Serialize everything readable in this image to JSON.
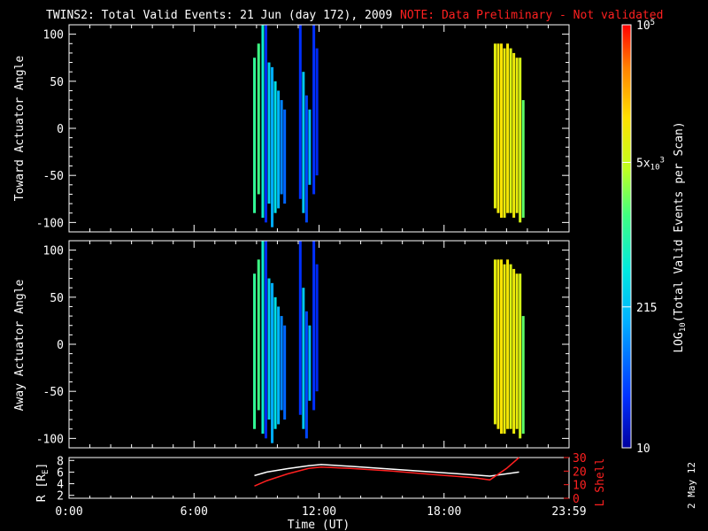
{
  "header": {
    "title": "TWINS2: Total Valid Events: 21 Jun (day 172), 2009",
    "note": "NOTE: Data Preliminary - Not validated"
  },
  "date_stamp": "2 May 12",
  "colors": {
    "background": "#000000",
    "note": "#ff2020",
    "axis": "#ffffff",
    "l_shell_line": "#ff2020",
    "r_line": "#ffffff"
  },
  "colorbar": {
    "label": "LOG10(Total Valid Events per Scan)",
    "label_main": "LOG",
    "label_sub": "10",
    "label_rest": "(Total Valid Events per Scan)",
    "scale": "log",
    "range": [
      10,
      100000
    ],
    "ticks": [
      {
        "value": 10,
        "base": "10",
        "sup": "",
        "sub": ""
      },
      {
        "value": 215,
        "base": "215",
        "sup": "",
        "sub": ""
      },
      {
        "value": 5000,
        "base": "5x",
        "sub": "10",
        "sup": "3"
      },
      {
        "value": 100000,
        "base": "10",
        "sup": "5",
        "sub": ""
      }
    ]
  },
  "chart_data": [
    {
      "type": "heatmap",
      "panel": "top",
      "ylabel": "Toward Actuator Angle",
      "ylim": [
        -110,
        110
      ],
      "yticks": [
        "100",
        "50",
        "0",
        "-50",
        "-100"
      ],
      "ytick_values": [
        100,
        50,
        0,
        -50,
        -100
      ],
      "xlim_hours": [
        0,
        24
      ],
      "columns": [
        {
          "t": 8.9,
          "y0": -90,
          "y1": 75,
          "v": 1200
        },
        {
          "t": 9.1,
          "y0": -70,
          "y1": 90,
          "v": 1500
        },
        {
          "t": 9.3,
          "y0": -95,
          "y1": 110,
          "v": 600
        },
        {
          "t": 9.45,
          "y0": -100,
          "y1": 110,
          "v": 25
        },
        {
          "t": 9.6,
          "y0": -80,
          "y1": 70,
          "v": 300
        },
        {
          "t": 9.75,
          "y0": -105,
          "y1": 65,
          "v": 150
        },
        {
          "t": 9.9,
          "y0": -90,
          "y1": 50,
          "v": 400
        },
        {
          "t": 10.05,
          "y0": -85,
          "y1": 40,
          "v": 180
        },
        {
          "t": 10.2,
          "y0": -70,
          "y1": 30,
          "v": 90
        },
        {
          "t": 10.35,
          "y0": -80,
          "y1": 20,
          "v": 60
        },
        {
          "t": 11.1,
          "y0": -75,
          "y1": 110,
          "v": 30
        },
        {
          "t": 11.25,
          "y0": -90,
          "y1": 60,
          "v": 250
        },
        {
          "t": 11.4,
          "y0": -100,
          "y1": 35,
          "v": 40
        },
        {
          "t": 11.55,
          "y0": -60,
          "y1": 20,
          "v": 220
        },
        {
          "t": 11.75,
          "y0": -70,
          "y1": 110,
          "v": 30
        },
        {
          "t": 11.9,
          "y0": -50,
          "y1": 85,
          "v": 25
        },
        {
          "t": 20.45,
          "y0": -85,
          "y1": 90,
          "v": 8000
        },
        {
          "t": 20.6,
          "y0": -90,
          "y1": 90,
          "v": 10000
        },
        {
          "t": 20.75,
          "y0": -95,
          "y1": 90,
          "v": 12000
        },
        {
          "t": 20.9,
          "y0": -95,
          "y1": 85,
          "v": 9000
        },
        {
          "t": 21.05,
          "y0": -90,
          "y1": 90,
          "v": 11000
        },
        {
          "t": 21.2,
          "y0": -90,
          "y1": 85,
          "v": 7000
        },
        {
          "t": 21.35,
          "y0": -95,
          "y1": 80,
          "v": 9500
        },
        {
          "t": 21.5,
          "y0": -90,
          "y1": 75,
          "v": 8500
        },
        {
          "t": 21.65,
          "y0": -100,
          "y1": 75,
          "v": 6000
        },
        {
          "t": 21.8,
          "y0": -95,
          "y1": 30,
          "v": 2000
        }
      ]
    },
    {
      "type": "heatmap",
      "panel": "middle",
      "ylabel": "Away Actuator Angle",
      "ylim": [
        -110,
        110
      ],
      "yticks": [
        "100",
        "50",
        "0",
        "-50",
        "-100"
      ],
      "ytick_values": [
        100,
        50,
        0,
        -50,
        -100
      ],
      "xlim_hours": [
        0,
        24
      ],
      "columns": [
        {
          "t": 8.9,
          "y0": -90,
          "y1": 75,
          "v": 1200
        },
        {
          "t": 9.1,
          "y0": -70,
          "y1": 90,
          "v": 1500
        },
        {
          "t": 9.3,
          "y0": -95,
          "y1": 110,
          "v": 600
        },
        {
          "t": 9.45,
          "y0": -100,
          "y1": 110,
          "v": 25
        },
        {
          "t": 9.6,
          "y0": -80,
          "y1": 70,
          "v": 300
        },
        {
          "t": 9.75,
          "y0": -105,
          "y1": 65,
          "v": 150
        },
        {
          "t": 9.9,
          "y0": -90,
          "y1": 50,
          "v": 400
        },
        {
          "t": 10.05,
          "y0": -85,
          "y1": 40,
          "v": 180
        },
        {
          "t": 10.2,
          "y0": -70,
          "y1": 30,
          "v": 90
        },
        {
          "t": 10.35,
          "y0": -80,
          "y1": 20,
          "v": 60
        },
        {
          "t": 11.1,
          "y0": -75,
          "y1": 110,
          "v": 30
        },
        {
          "t": 11.25,
          "y0": -90,
          "y1": 60,
          "v": 250
        },
        {
          "t": 11.4,
          "y0": -100,
          "y1": 35,
          "v": 40
        },
        {
          "t": 11.55,
          "y0": -60,
          "y1": 20,
          "v": 220
        },
        {
          "t": 11.75,
          "y0": -70,
          "y1": 110,
          "v": 30
        },
        {
          "t": 11.9,
          "y0": -50,
          "y1": 85,
          "v": 25
        },
        {
          "t": 20.45,
          "y0": -85,
          "y1": 90,
          "v": 8000
        },
        {
          "t": 20.6,
          "y0": -90,
          "y1": 90,
          "v": 10000
        },
        {
          "t": 20.75,
          "y0": -95,
          "y1": 90,
          "v": 12000
        },
        {
          "t": 20.9,
          "y0": -95,
          "y1": 85,
          "v": 9000
        },
        {
          "t": 21.05,
          "y0": -90,
          "y1": 90,
          "v": 11000
        },
        {
          "t": 21.2,
          "y0": -90,
          "y1": 85,
          "v": 7000
        },
        {
          "t": 21.35,
          "y0": -95,
          "y1": 80,
          "v": 9500
        },
        {
          "t": 21.5,
          "y0": -90,
          "y1": 75,
          "v": 8500
        },
        {
          "t": 21.65,
          "y0": -100,
          "y1": 75,
          "v": 6000
        },
        {
          "t": 21.8,
          "y0": -95,
          "y1": 30,
          "v": 2000
        }
      ]
    },
    {
      "type": "line",
      "panel": "bottom",
      "xlabel": "Time (UT)",
      "xticks": [
        "0:00",
        "6:00",
        "12:00",
        "18:00",
        "23:59"
      ],
      "xtick_hours": [
        0,
        6,
        12,
        18,
        24
      ],
      "ylabel_left": "R [RE]",
      "ylabel_left_main": "R [R",
      "ylabel_left_sub": "E",
      "ylabel_left_end": "]",
      "ylim_left": [
        1.5,
        8.5
      ],
      "yticks_left": [
        "2",
        "4",
        "6",
        "8"
      ],
      "ylabel_right": "L Shell",
      "ylim_right": [
        0,
        30
      ],
      "yticks_right": [
        "0",
        "10",
        "20",
        "30"
      ],
      "series": [
        {
          "axis": "left",
          "color": "#ffffff",
          "x": [
            8.9,
            9.5,
            10.5,
            11.5,
            12.1,
            13.5,
            15.5,
            17.5,
            19.5,
            20.2,
            21.0,
            21.6
          ],
          "y": [
            5.4,
            6.0,
            6.6,
            7.1,
            7.3,
            7.0,
            6.5,
            6.0,
            5.5,
            5.3,
            5.7,
            6.0
          ]
        },
        {
          "axis": "right",
          "color": "#ff2020",
          "x": [
            8.9,
            9.5,
            10.5,
            11.5,
            12.1,
            13.5,
            15.5,
            17.5,
            19.5,
            20.2,
            21.0,
            21.6
          ],
          "y": [
            9,
            13,
            18,
            22,
            23,
            22,
            20,
            17.5,
            15,
            13.5,
            22,
            30
          ]
        }
      ]
    }
  ]
}
